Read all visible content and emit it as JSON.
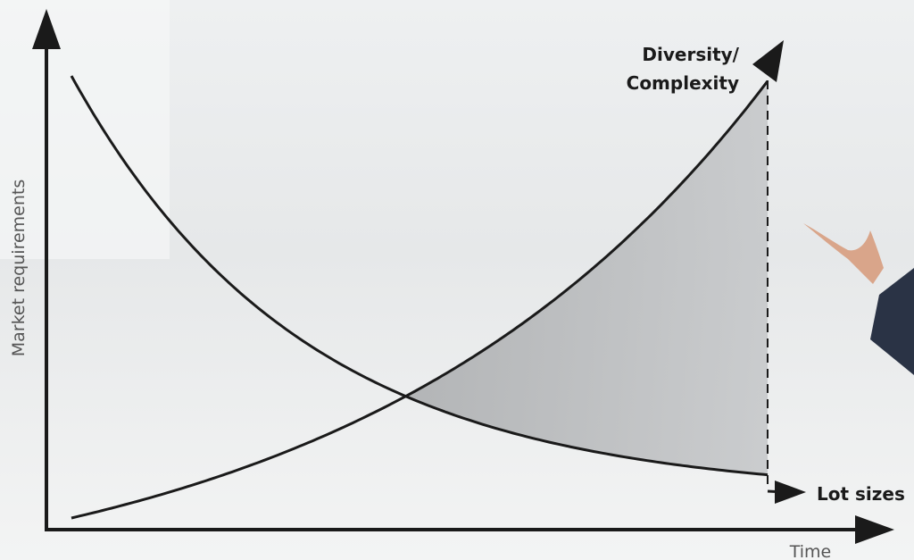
{
  "curve_labels": {
    "rising": [
      "Diversity/",
      "Complexity"
    ],
    "falling": "Lot sizes"
  },
  "axes": {
    "y_label": "Market requirements",
    "x_label": "Time"
  }
}
